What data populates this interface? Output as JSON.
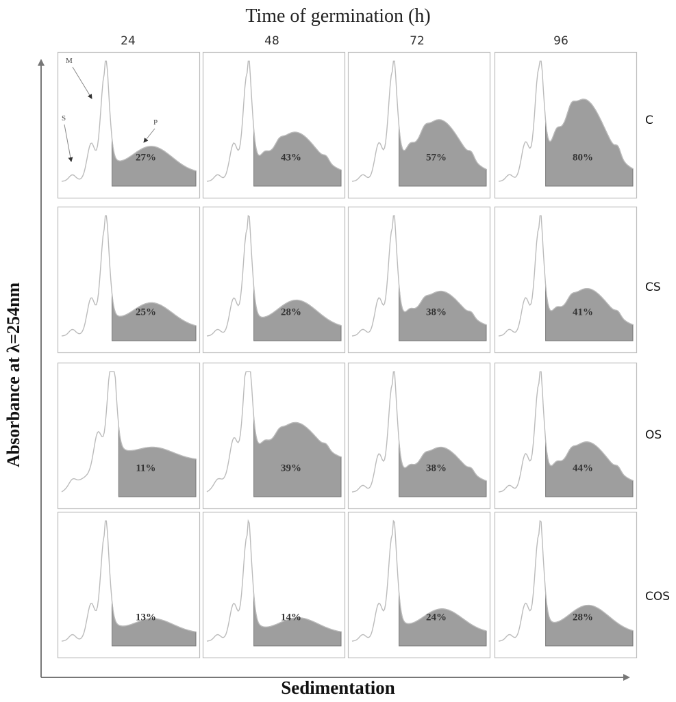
{
  "chart_data": {
    "type": "area",
    "title": "Time of germination (h)",
    "xlabel": "Sedimentation",
    "ylabel": "Absorbance at λ=254nm",
    "columns": [
      "24",
      "48",
      "72",
      "96"
    ],
    "rows": [
      "C",
      "CS",
      "OS",
      "COS"
    ],
    "annotations": [
      "M",
      "S",
      "P"
    ],
    "polysome_percent": [
      [
        27,
        43,
        57,
        80
      ],
      [
        25,
        28,
        38,
        41
      ],
      [
        11,
        39,
        38,
        44
      ],
      [
        13,
        14,
        24,
        28
      ]
    ],
    "polysome_labels": [
      [
        "27%",
        "43%",
        "57%",
        "80%"
      ],
      [
        "25%",
        "28%",
        "38%",
        "41%"
      ],
      [
        "11%",
        "39%",
        "38%",
        "44%"
      ],
      [
        "13%",
        "14%",
        "24%",
        "28%"
      ]
    ],
    "grid": false
  }
}
